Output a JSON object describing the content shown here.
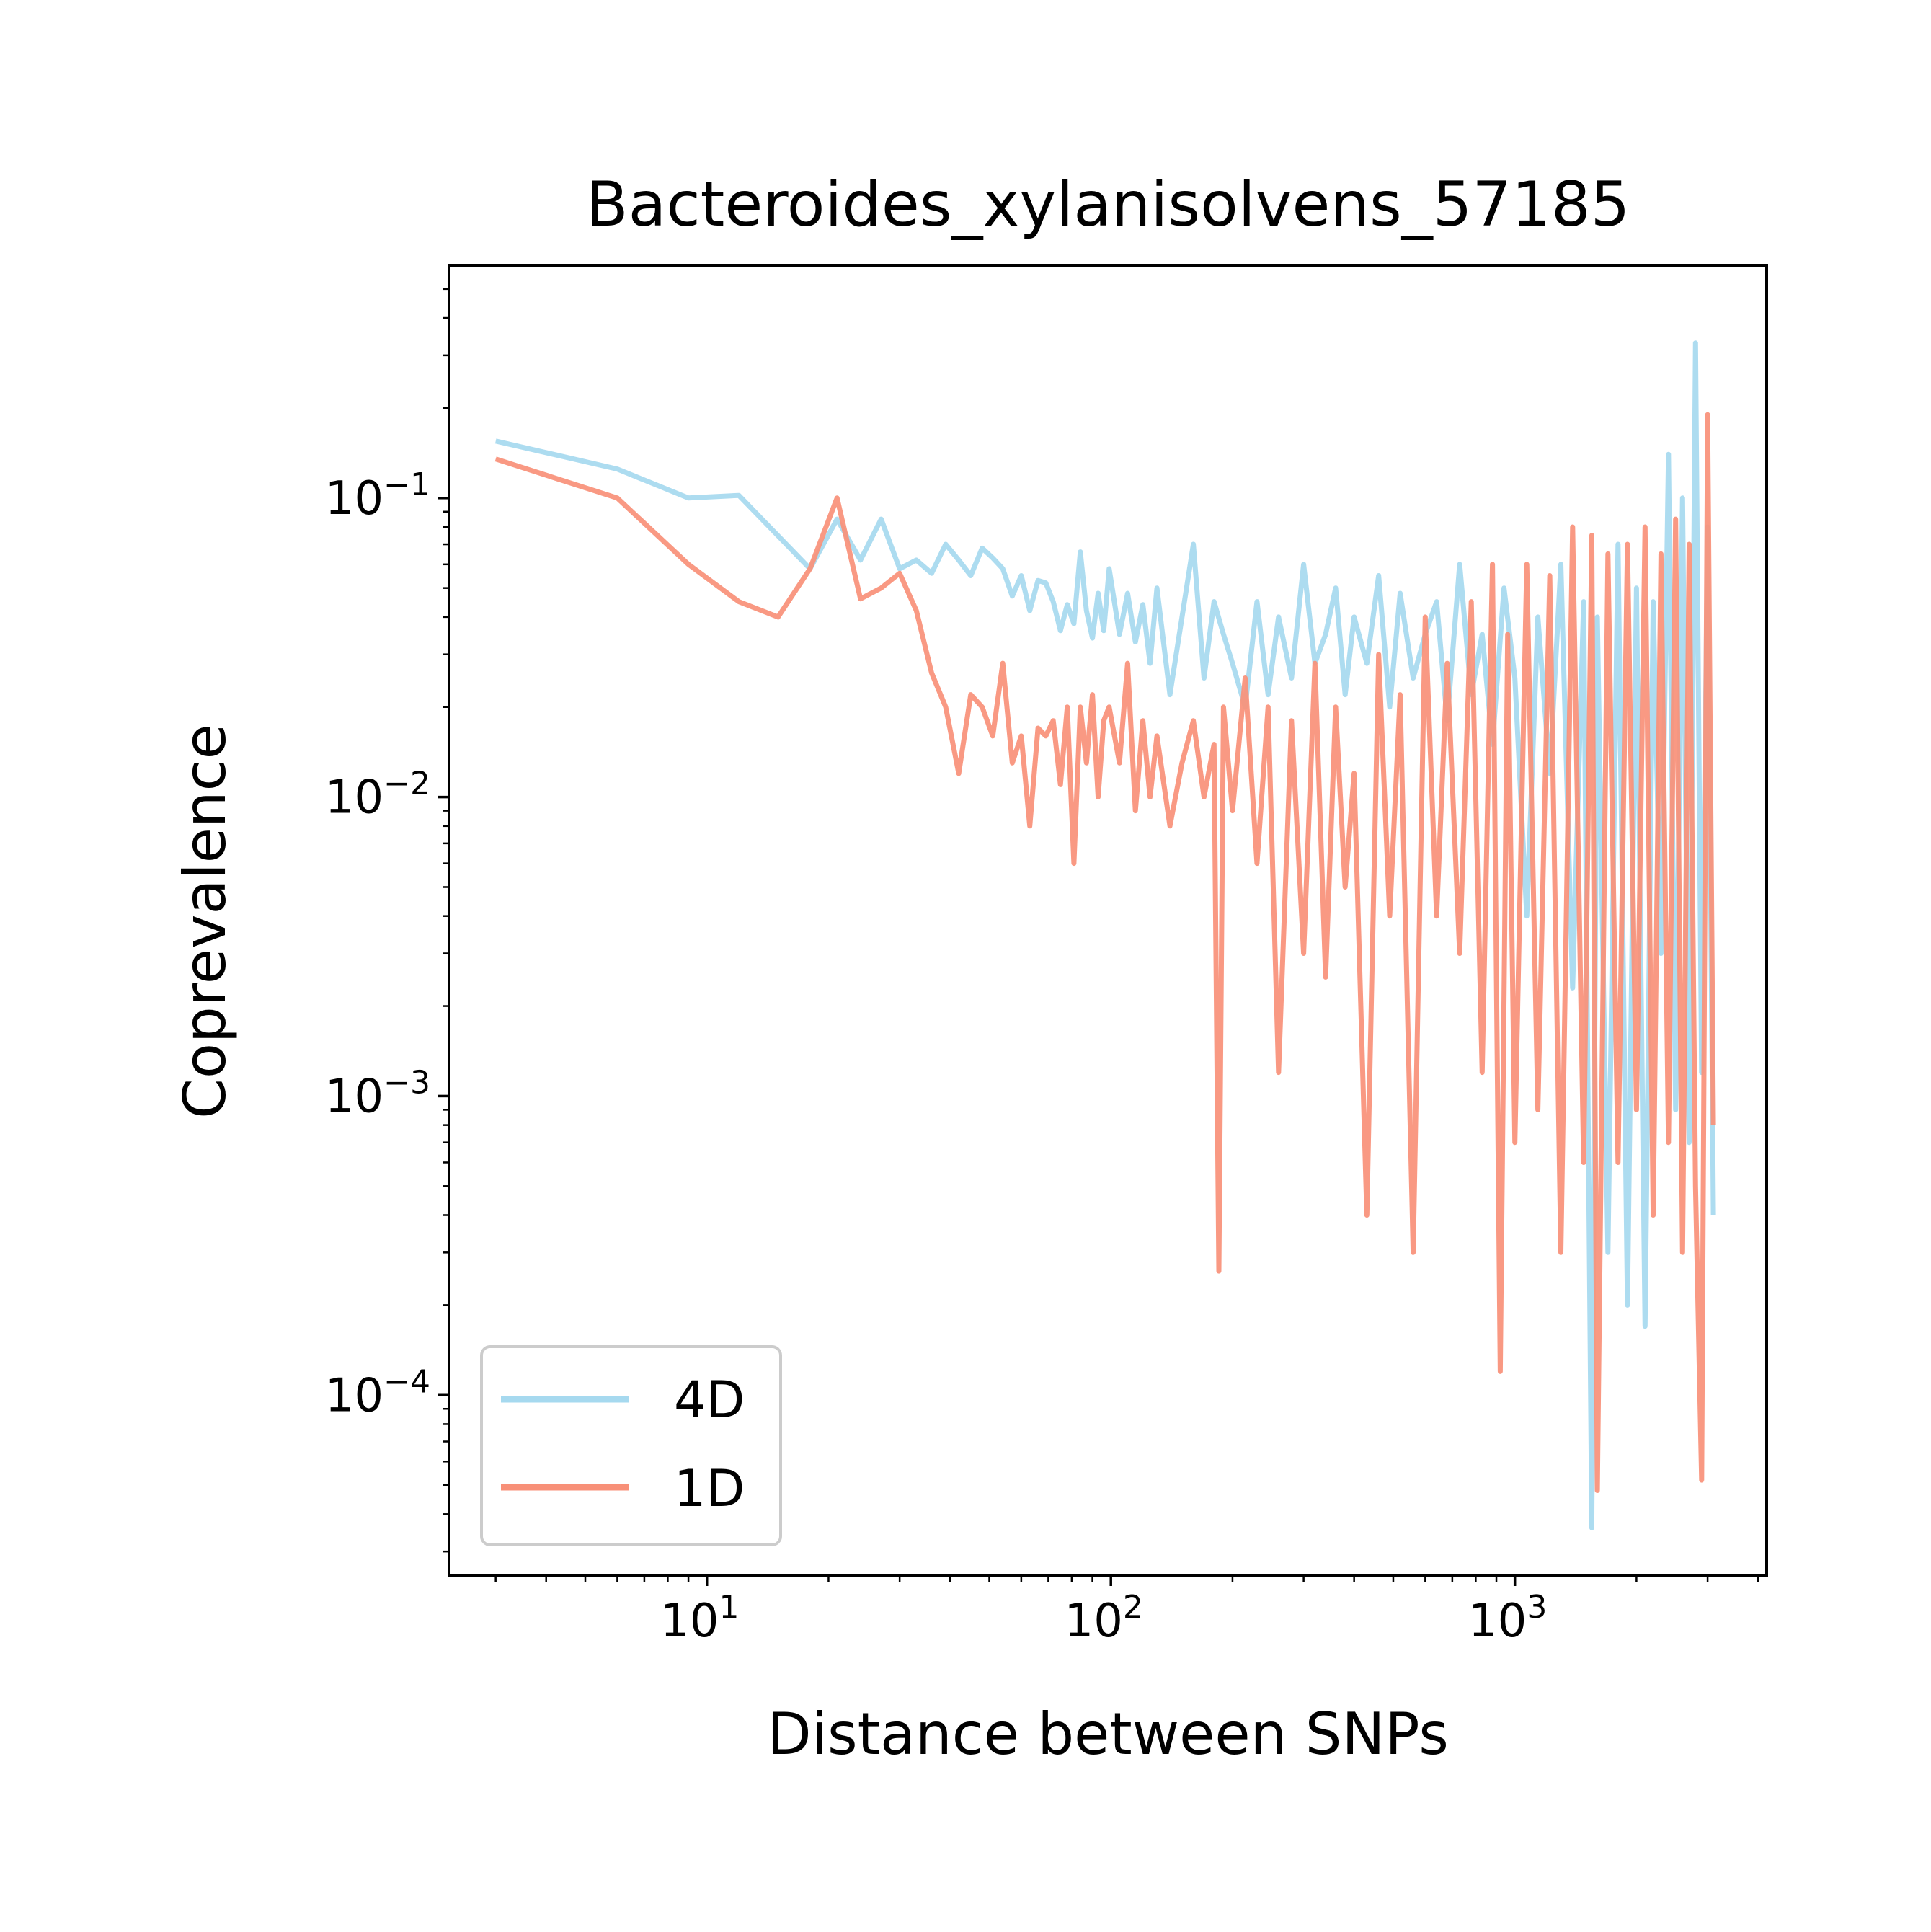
{
  "chart_data": {
    "type": "line",
    "title": "Bacteroides_xylanisolvens_57185",
    "xlabel": "Distance between SNPs",
    "ylabel": "Coprevalence",
    "xscale": "log",
    "yscale": "log",
    "xlim": [
      2.3,
      4200
    ],
    "ylim": [
      2.5e-05,
      0.6
    ],
    "xticks": [
      {
        "value": 10,
        "base": "10",
        "exp": "1"
      },
      {
        "value": 100,
        "base": "10",
        "exp": "2"
      },
      {
        "value": 1000,
        "base": "10",
        "exp": "3"
      }
    ],
    "yticks": [
      {
        "value": 0.1,
        "base": "10",
        "exp": "−1"
      },
      {
        "value": 0.01,
        "base": "10",
        "exp": "−2"
      },
      {
        "value": 0.001,
        "base": "10",
        "exp": "−3"
      },
      {
        "value": 0.0001,
        "base": "10",
        "exp": "−4"
      }
    ],
    "grid": false,
    "legend_position": "lower-left",
    "series": [
      {
        "name": "4D",
        "color": "#a6d9ef",
        "x": [
          3,
          6,
          9,
          12,
          18,
          21,
          24,
          27,
          30,
          33,
          36,
          39,
          42,
          45,
          48,
          51,
          54,
          57,
          60,
          63,
          66,
          69,
          72,
          75,
          78,
          81,
          84,
          87,
          90,
          93,
          96,
          99,
          105,
          110,
          115,
          120,
          125,
          130,
          140,
          150,
          160,
          170,
          180,
          190,
          200,
          215,
          230,
          245,
          260,
          280,
          300,
          320,
          340,
          360,
          380,
          400,
          430,
          460,
          490,
          520,
          560,
          600,
          640,
          680,
          730,
          780,
          830,
          880,
          940,
          1000,
          1070,
          1140,
          1220,
          1300,
          1390,
          1480,
          1550,
          1600,
          1700,
          1800,
          1900,
          2000,
          2100,
          2200,
          2300,
          2400,
          2500,
          2600,
          2700,
          2800,
          2900,
          3000,
          3100
        ],
        "values": [
          0.155,
          0.125,
          0.1,
          0.102,
          0.058,
          0.085,
          0.062,
          0.085,
          0.058,
          0.062,
          0.056,
          0.07,
          0.062,
          0.055,
          0.068,
          0.063,
          0.058,
          0.047,
          0.055,
          0.042,
          0.053,
          0.052,
          0.045,
          0.036,
          0.044,
          0.038,
          0.066,
          0.042,
          0.034,
          0.048,
          0.036,
          0.058,
          0.035,
          0.048,
          0.033,
          0.044,
          0.028,
          0.05,
          0.022,
          0.04,
          0.07,
          0.025,
          0.045,
          0.035,
          0.028,
          0.02,
          0.045,
          0.022,
          0.04,
          0.025,
          0.06,
          0.028,
          0.035,
          0.05,
          0.022,
          0.04,
          0.028,
          0.055,
          0.02,
          0.048,
          0.025,
          0.035,
          0.045,
          0.018,
          0.06,
          0.022,
          0.035,
          0.015,
          0.05,
          0.025,
          0.004,
          0.04,
          0.012,
          0.06,
          0.0023,
          0.045,
          3.6e-05,
          0.04,
          0.0003,
          0.07,
          0.0002,
          0.05,
          0.00017,
          0.045,
          0.003,
          0.14,
          0.0009,
          0.1,
          0.0007,
          0.33,
          0.0012,
          0.08,
          0.0004
        ]
      },
      {
        "name": "1D",
        "color": "#f89078",
        "x": [
          3,
          6,
          9,
          12,
          15,
          18,
          21,
          24,
          27,
          30,
          33,
          36,
          39,
          42,
          45,
          48,
          51,
          54,
          57,
          60,
          63,
          66,
          69,
          72,
          75,
          78,
          81,
          84,
          87,
          90,
          93,
          96,
          99,
          105,
          110,
          115,
          120,
          125,
          130,
          140,
          150,
          160,
          170,
          180,
          185,
          190,
          200,
          215,
          230,
          245,
          260,
          280,
          300,
          320,
          340,
          360,
          380,
          400,
          430,
          460,
          490,
          520,
          560,
          600,
          640,
          680,
          730,
          780,
          830,
          880,
          920,
          960,
          1000,
          1070,
          1140,
          1220,
          1300,
          1390,
          1480,
          1550,
          1600,
          1700,
          1800,
          1900,
          2000,
          2100,
          2200,
          2300,
          2400,
          2500,
          2600,
          2700,
          2800,
          2900,
          3000,
          3100
        ],
        "values": [
          0.135,
          0.1,
          0.06,
          0.045,
          0.04,
          0.058,
          0.1,
          0.046,
          0.05,
          0.056,
          0.042,
          0.026,
          0.02,
          0.012,
          0.022,
          0.02,
          0.016,
          0.028,
          0.013,
          0.016,
          0.008,
          0.017,
          0.016,
          0.018,
          0.011,
          0.02,
          0.006,
          0.02,
          0.013,
          0.022,
          0.01,
          0.018,
          0.02,
          0.013,
          0.028,
          0.009,
          0.018,
          0.01,
          0.016,
          0.008,
          0.013,
          0.018,
          0.01,
          0.015,
          0.00026,
          0.02,
          0.009,
          0.025,
          0.006,
          0.02,
          0.0012,
          0.018,
          0.003,
          0.028,
          0.0025,
          0.02,
          0.005,
          0.012,
          0.0004,
          0.03,
          0.004,
          0.022,
          0.0003,
          0.04,
          0.004,
          0.028,
          0.003,
          0.045,
          0.0012,
          0.06,
          0.00012,
          0.035,
          0.0007,
          0.06,
          0.0009,
          0.055,
          0.0003,
          0.08,
          0.0006,
          0.075,
          4.8e-05,
          0.065,
          0.0006,
          0.07,
          0.0009,
          0.08,
          0.0004,
          0.065,
          0.0007,
          0.085,
          0.0003,
          0.07,
          0.0005,
          5.2e-05,
          0.19,
          0.0008
        ]
      }
    ]
  }
}
